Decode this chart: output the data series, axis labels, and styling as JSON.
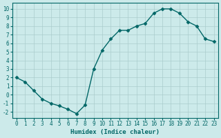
{
  "x": [
    0,
    1,
    2,
    3,
    4,
    5,
    6,
    7,
    8,
    9,
    10,
    11,
    12,
    13,
    14,
    15,
    16,
    17,
    18,
    19,
    20,
    21,
    22,
    23
  ],
  "y": [
    2,
    1.5,
    0.5,
    -0.5,
    -1,
    -1.3,
    -1.7,
    -2.2,
    -1.2,
    3,
    5.2,
    6.5,
    7.5,
    7.5,
    8,
    8.3,
    9.5,
    10,
    10,
    9.5,
    8.5,
    8,
    6.5,
    6.2
  ],
  "line_color": "#006666",
  "marker": "D",
  "markersize": 2.5,
  "linewidth": 1.0,
  "bg_color": "#cceaea",
  "grid_color": "#aacccc",
  "xlabel": "Humidex (Indice chaleur)",
  "xlim": [
    -0.5,
    23.5
  ],
  "ylim": [
    -2.7,
    10.7
  ],
  "yticks": [
    -2,
    -1,
    0,
    1,
    2,
    3,
    4,
    5,
    6,
    7,
    8,
    9,
    10
  ],
  "xticks": [
    0,
    1,
    2,
    3,
    4,
    5,
    6,
    7,
    8,
    9,
    10,
    11,
    12,
    13,
    14,
    15,
    16,
    17,
    18,
    19,
    20,
    21,
    22,
    23
  ],
  "tick_fontsize": 5.5,
  "xlabel_fontsize": 6.5
}
